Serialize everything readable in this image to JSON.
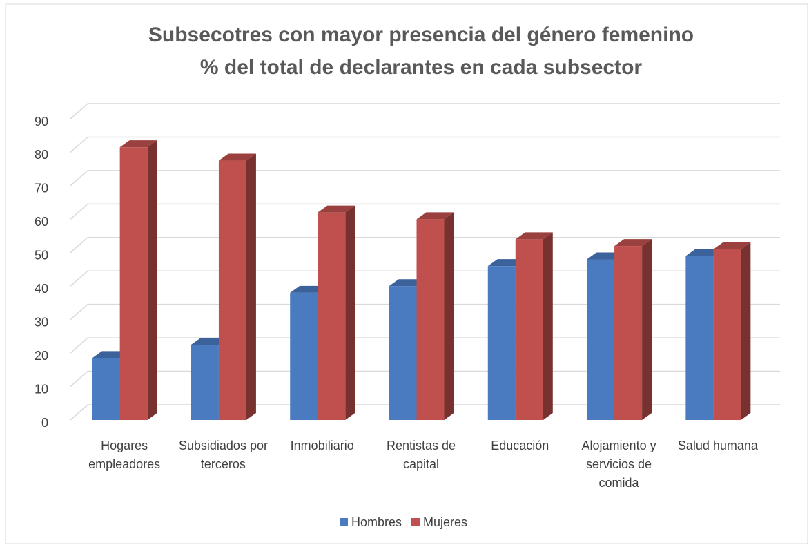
{
  "chart_data": {
    "type": "bar3d",
    "title": "Subsecotres con mayor presencia del género femenino",
    "subtitle": "% del total de declarantes en cada subsector",
    "categories": [
      "Hogares empleadores",
      "Subsidiados por terceros",
      "Inmobiliario",
      "Rentistas de capital",
      "Educación",
      "Alojamiento y servicios de comida",
      "Salud humana"
    ],
    "series": [
      {
        "name": "Hombres",
        "color": "#4a7bc1",
        "values": [
          18.5,
          22.5,
          38,
          40,
          46,
          48,
          49
        ]
      },
      {
        "name": "Mujeres",
        "color": "#c0504d",
        "values": [
          81.5,
          77.5,
          62,
          60,
          54,
          52,
          51
        ]
      }
    ],
    "ylim": [
      0,
      90
    ],
    "yticks": [
      0,
      10,
      20,
      30,
      40,
      50,
      60,
      70,
      80,
      90
    ],
    "grid": true,
    "legend": "bottom"
  }
}
